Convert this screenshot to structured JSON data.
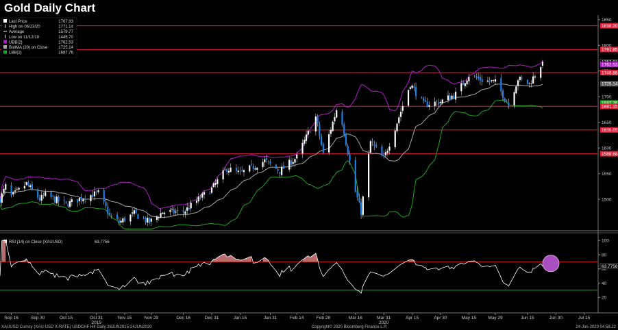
{
  "title": "Gold Daily Chart",
  "colors": {
    "bull": "#ffffff",
    "bear": "#1e7fe6",
    "hline": "#e0203a",
    "ubb": "#b01cc8",
    "lbb": "#1fa51f",
    "ma": "#a8a8a8",
    "rsi": "#ffffff",
    "rsi_hi": "#c91b1b",
    "rsi_lo": "#1fa51f",
    "highlight": "#a94fc1"
  },
  "legend": [
    {
      "label": "Last Price",
      "value": "1767.93",
      "color": "#ffffff",
      "marker": "box"
    },
    {
      "label": "High on 06/23/20",
      "value": "1771.14",
      "color": "#ffffff",
      "marker": "tick"
    },
    {
      "label": "Average",
      "value": "1579.77",
      "color": "#ffffff",
      "marker": "dash"
    },
    {
      "label": "Low on 11/12/19",
      "value": "1445.70",
      "color": "#ffffff",
      "marker": "tick"
    },
    {
      "label": "UBB(2)",
      "value": "1762.53",
      "color": "#b01cc8",
      "marker": "box"
    },
    {
      "label": "BollMA (20)  on Close",
      "value": "1725.14",
      "color": "#a8a8a8",
      "marker": "box"
    },
    {
      "label": "LBB(2)",
      "value": "1687.76",
      "color": "#1fa51f",
      "marker": "box"
    }
  ],
  "price_axis": [
    "1850",
    "1800",
    "1750",
    "1700",
    "1650",
    "1600",
    "1550",
    "1500"
  ],
  "price_tags": [
    {
      "value": 1838.2,
      "text": "1838.20",
      "color": "#e0203a"
    },
    {
      "value": 1791.85,
      "text": "1791.85",
      "color": "#e0203a"
    },
    {
      "value": 1767.93,
      "text": "1767.93",
      "color": "#000000"
    },
    {
      "value": 1762.53,
      "text": "1762.53",
      "color": "#b01cc8"
    },
    {
      "value": 1746.88,
      "text": "1746.88",
      "color": "#e0203a"
    },
    {
      "value": 1725.14,
      "text": "1725.14",
      "color": "#555555"
    },
    {
      "value": 1687.76,
      "text": "1687.76",
      "color": "#1fa51f"
    },
    {
      "value": 1681.15,
      "text": "1681.15",
      "color": "#e0203a"
    },
    {
      "value": 1635.05,
      "text": "1635.05",
      "color": "#e0203a"
    },
    {
      "value": 1588.68,
      "text": "1588.68",
      "color": "#e0203a"
    }
  ],
  "rsi_legend": {
    "label": "RSI (14)  on Close (XAUUSD)",
    "value": "63.7756"
  },
  "rsi_axis": [
    "100",
    "80",
    "60",
    "40",
    "20"
  ],
  "rsi_tag": "63.7756",
  "x_axis": [
    "Sep 16",
    "Sep 30",
    "Oct 15",
    "Oct 31",
    "Nov 15",
    "Nov 29",
    "Dec 16",
    "Dec 31",
    "Jan 15",
    "Jan 31",
    "Feb 14",
    "Feb 28",
    "Mar 16",
    "Mar 31",
    "Apr 15",
    "Apr 30",
    "May 15",
    "May 29",
    "Jun 15",
    "Jun 30",
    "Jul 15"
  ],
  "x_years": [
    {
      "label": "2019",
      "after": "Oct 31"
    },
    {
      "label": "2020",
      "after": "Mar 31"
    }
  ],
  "footer": {
    "left": "XAUUSD Curncy (XAU-USD X-RATE) USDCHF H4  Daily 26JUN2015-24JUN2020",
    "center": "Copyright© 2020 Bloomberg Finance L.P.",
    "right": "24-Jun-2020 04:58:22"
  },
  "chart_data": [
    {
      "type": "candlestick",
      "title": "Gold Daily Chart",
      "ylim": [
        1440,
        1855
      ],
      "x_range": [
        "2019-09-10",
        "2020-07-22"
      ],
      "close_anchors": [
        {
          "date": "2019-09-10",
          "close": 1500
        },
        {
          "date": "2019-09-13",
          "close": 1525
        },
        {
          "date": "2019-09-16",
          "close": 1505
        },
        {
          "date": "2019-09-24",
          "close": 1530
        },
        {
          "date": "2019-10-01",
          "close": 1500
        },
        {
          "date": "2019-10-04",
          "close": 1508
        },
        {
          "date": "2019-10-15",
          "close": 1490
        },
        {
          "date": "2019-10-25",
          "close": 1505
        },
        {
          "date": "2019-11-01",
          "close": 1512
        },
        {
          "date": "2019-11-07",
          "close": 1468
        },
        {
          "date": "2019-11-12",
          "close": 1455
        },
        {
          "date": "2019-11-20",
          "close": 1472
        },
        {
          "date": "2019-11-28",
          "close": 1455
        },
        {
          "date": "2019-12-05",
          "close": 1475
        },
        {
          "date": "2019-12-16",
          "close": 1475
        },
        {
          "date": "2019-12-24",
          "close": 1500
        },
        {
          "date": "2019-12-31",
          "close": 1520
        },
        {
          "date": "2020-01-08",
          "close": 1560
        },
        {
          "date": "2020-01-15",
          "close": 1550
        },
        {
          "date": "2020-01-28",
          "close": 1575
        },
        {
          "date": "2020-02-05",
          "close": 1555
        },
        {
          "date": "2020-02-14",
          "close": 1582
        },
        {
          "date": "2020-02-24",
          "close": 1660
        },
        {
          "date": "2020-02-28",
          "close": 1588
        },
        {
          "date": "2020-03-06",
          "close": 1675
        },
        {
          "date": "2020-03-09",
          "close": 1650
        },
        {
          "date": "2020-03-16",
          "close": 1515
        },
        {
          "date": "2020-03-19",
          "close": 1475
        },
        {
          "date": "2020-03-24",
          "close": 1612
        },
        {
          "date": "2020-03-31",
          "close": 1578
        },
        {
          "date": "2020-04-07",
          "close": 1650
        },
        {
          "date": "2020-04-14",
          "close": 1725
        },
        {
          "date": "2020-04-21",
          "close": 1685
        },
        {
          "date": "2020-04-30",
          "close": 1690
        },
        {
          "date": "2020-05-08",
          "close": 1705
        },
        {
          "date": "2020-05-15",
          "close": 1742
        },
        {
          "date": "2020-05-22",
          "close": 1732
        },
        {
          "date": "2020-05-29",
          "close": 1728
        },
        {
          "date": "2020-06-05",
          "close": 1685
        },
        {
          "date": "2020-06-10",
          "close": 1735
        },
        {
          "date": "2020-06-16",
          "close": 1725
        },
        {
          "date": "2020-06-19",
          "close": 1743
        },
        {
          "date": "2020-06-23",
          "close": 1767.93
        }
      ],
      "horizontal_lines": [
        1838.2,
        1791.85,
        1746.88,
        1681.15,
        1635.05,
        1588.68
      ],
      "series": [
        {
          "name": "UBB(2)",
          "last": 1762.53
        },
        {
          "name": "BollMA (20)  on Close",
          "last": 1725.14
        },
        {
          "name": "LBB(2)",
          "last": 1687.76
        }
      ],
      "last_price": 1767.93,
      "high": {
        "date": "2020-06-23",
        "value": 1771.14
      },
      "low": {
        "date": "2019-11-12",
        "value": 1445.7
      },
      "average": 1579.77
    },
    {
      "type": "line",
      "title": "RSI (14)  on Close (XAUUSD)",
      "ylim": [
        0,
        105
      ],
      "reference_lines": [
        70,
        30
      ],
      "last": 63.7756
    }
  ]
}
